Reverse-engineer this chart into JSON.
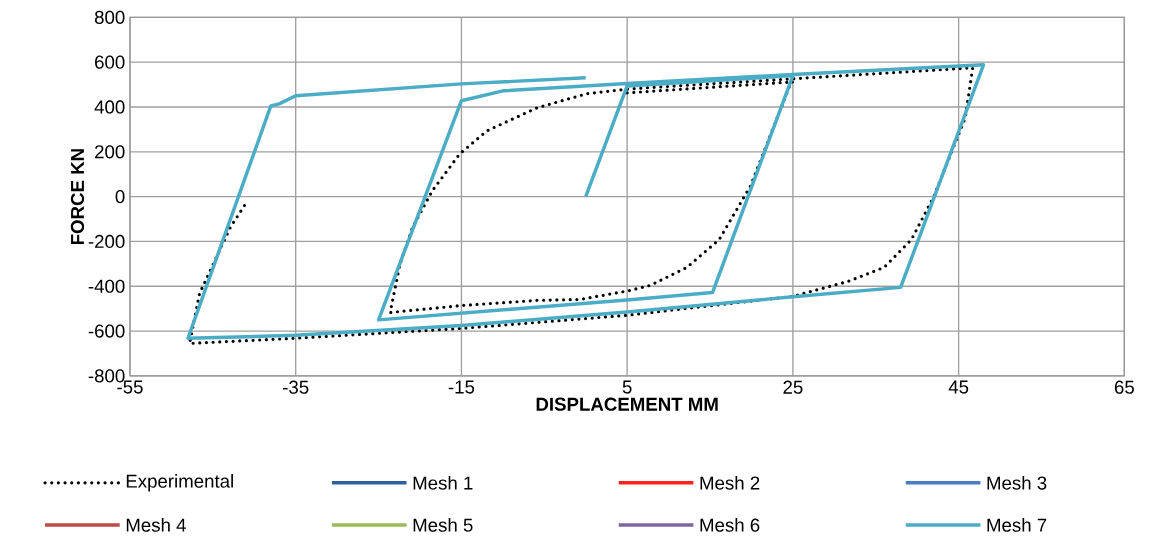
{
  "chart_data": {
    "type": "line",
    "xlabel": "DISPLACEMENT MM",
    "ylabel": "FORCE KN",
    "xlim": [
      -55,
      65
    ],
    "xticks": [
      -55,
      -35,
      -15,
      5,
      25,
      45,
      65
    ],
    "ylim": [
      -800,
      800
    ],
    "yticks": [
      -800,
      -600,
      -400,
      -200,
      0,
      200,
      400,
      600,
      800
    ],
    "grid": true,
    "legend": "bottom",
    "marker": "none",
    "series": [
      {
        "name": "Experimental",
        "color": "#000000",
        "line_style": "dotted",
        "x": [
          5,
          25,
          24.8,
          19.9,
          16.1,
          12.2,
          7.8,
          5.3,
          -0.7,
          -5.9,
          -15,
          -23.6,
          -22.4,
          -20.9,
          -18.5,
          -15.2,
          -11.9,
          -5.9,
          0.1,
          5.3,
          25,
          46.7,
          45.8,
          42,
          39.3,
          36,
          31.6,
          25,
          4.8,
          -15,
          -35,
          -47.8,
          -46.6,
          -42.9,
          -40.8
        ],
        "values": [
          463,
          512,
          512,
          49,
          -192,
          -316,
          -396,
          -419,
          -459,
          -463,
          -486,
          -517,
          -298,
          -138,
          27,
          191,
          294,
          396,
          459,
          481,
          526,
          575,
          352,
          0,
          -192,
          -316,
          -379,
          -445,
          -530,
          -588,
          -632,
          -655,
          -432,
          -138,
          -18
        ]
      },
      {
        "name": "Mesh 1",
        "color": "#2e5f9e",
        "line_style": "solid"
      },
      {
        "name": "Mesh 2",
        "color": "#ff2020",
        "line_style": "solid"
      },
      {
        "name": "Mesh 3",
        "color": "#4a7ec4",
        "line_style": "solid"
      },
      {
        "name": "Mesh 4",
        "color": "#be4b48",
        "line_style": "solid"
      },
      {
        "name": "Mesh 5",
        "color": "#9bbb59",
        "line_style": "solid"
      },
      {
        "name": "Mesh 6",
        "color": "#8064a2",
        "line_style": "solid"
      },
      {
        "name": "Mesh 7",
        "color": "#4bacc6",
        "line_style": "solid",
        "x": [
          0,
          5,
          25,
          15.3,
          5,
          -25,
          -15,
          -10,
          5,
          25,
          48,
          38,
          25,
          5,
          -15,
          -35,
          -48,
          -38,
          -37,
          -35,
          -15,
          0
        ],
        "values": [
          0,
          494,
          540,
          -428,
          -461,
          -550,
          428,
          472,
          505,
          545,
          588,
          -405,
          -447,
          -515,
          -575,
          -619,
          -632,
          405,
          414,
          450,
          503,
          530
        ]
      }
    ]
  }
}
